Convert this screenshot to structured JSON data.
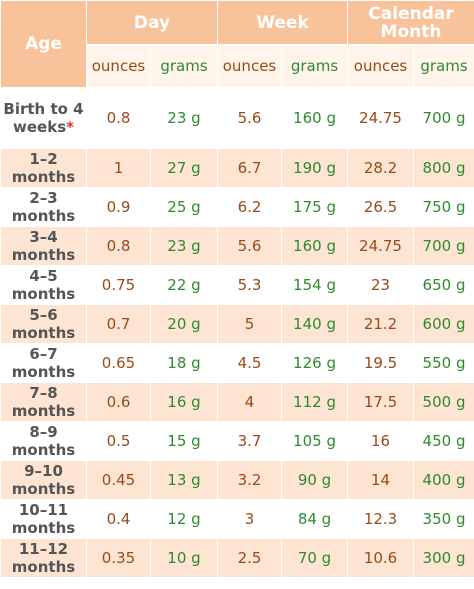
{
  "headers": {
    "age": "Age",
    "day": "Day",
    "week": "Week",
    "month": "Calendar Month",
    "ounces": "ounces",
    "grams": "grams"
  },
  "footnote_marker": "*",
  "colors": {
    "header_bg": "#f8c39b",
    "subheader_bg": "#fff4ea",
    "band_bg": "#fde4d3",
    "ounces_text": "#9a4a18",
    "grams_text": "#2e8b2e",
    "marker": "#e0312b"
  },
  "rows": [
    {
      "age": "Birth to 4 weeks",
      "day_oz": "0.8",
      "day_g": "23 g",
      "week_oz": "5.6",
      "week_g": "160 g",
      "month_oz": "24.75",
      "month_g": "700 g"
    },
    {
      "age": "1–2 months",
      "day_oz": "1",
      "day_g": "27 g",
      "week_oz": "6.7",
      "week_g": "190 g",
      "month_oz": "28.2",
      "month_g": "800 g"
    },
    {
      "age": "2–3 months",
      "day_oz": "0.9",
      "day_g": "25 g",
      "week_oz": "6.2",
      "week_g": "175 g",
      "month_oz": "26.5",
      "month_g": "750 g"
    },
    {
      "age": "3–4 months",
      "day_oz": "0.8",
      "day_g": "23 g",
      "week_oz": "5.6",
      "week_g": "160 g",
      "month_oz": "24.75",
      "month_g": "700 g"
    },
    {
      "age": "4–5 months",
      "day_oz": "0.75",
      "day_g": "22 g",
      "week_oz": "5.3",
      "week_g": "154 g",
      "month_oz": "23",
      "month_g": "650 g"
    },
    {
      "age": "5–6 months",
      "day_oz": "0.7",
      "day_g": "20 g",
      "week_oz": "5",
      "week_g": "140 g",
      "month_oz": "21.2",
      "month_g": "600 g"
    },
    {
      "age": "6–7 months",
      "day_oz": "0.65",
      "day_g": "18 g",
      "week_oz": "4.5",
      "week_g": "126 g",
      "month_oz": "19.5",
      "month_g": "550 g"
    },
    {
      "age": "7–8 months",
      "day_oz": "0.6",
      "day_g": "16 g",
      "week_oz": "4",
      "week_g": "112 g",
      "month_oz": "17.5",
      "month_g": "500 g"
    },
    {
      "age": "8–9 months",
      "day_oz": "0.5",
      "day_g": "15 g",
      "week_oz": "3.7",
      "week_g": "105 g",
      "month_oz": "16",
      "month_g": "450 g"
    },
    {
      "age": "9–10 months",
      "day_oz": "0.45",
      "day_g": "13 g",
      "week_oz": "3.2",
      "week_g": "90 g",
      "month_oz": "14",
      "month_g": "400 g"
    },
    {
      "age": "10–11 months",
      "day_oz": "0.4",
      "day_g": "12 g",
      "week_oz": "3",
      "week_g": "84 g",
      "month_oz": "12.3",
      "month_g": "350 g"
    },
    {
      "age": "11–12 months",
      "day_oz": "0.35",
      "day_g": "10 g",
      "week_oz": "2.5",
      "week_g": "70 g",
      "month_oz": "10.6",
      "month_g": "300 g"
    }
  ]
}
